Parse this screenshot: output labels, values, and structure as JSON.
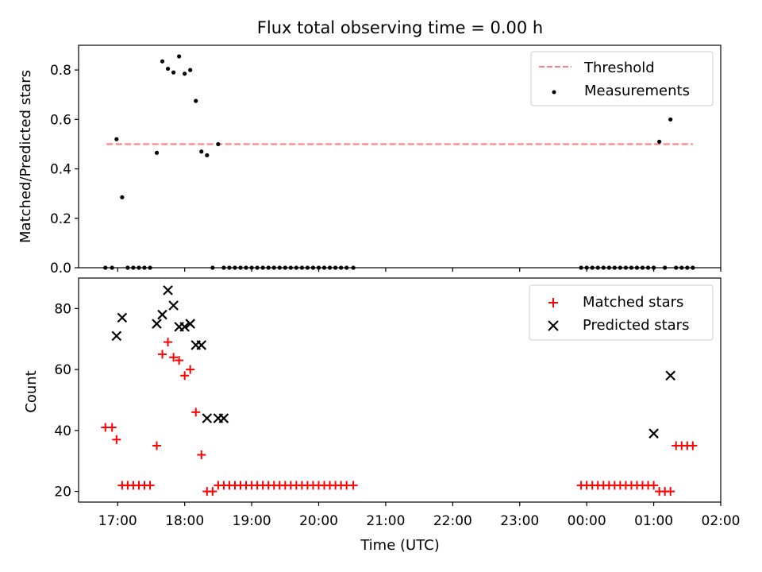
{
  "chart_data": [
    {
      "type": "scatter",
      "title": "Flux total observing time = 0.00 h",
      "xlabel": "",
      "ylabel": "Matched/Predicted stars",
      "xlim": [
        "16:25",
        "26:00"
      ],
      "ylim": [
        0,
        0.9
      ],
      "yticks": [
        0.0,
        0.2,
        0.4,
        0.6,
        0.8
      ],
      "ytick_labels": [
        "0.0",
        "0.2",
        "0.4",
        "0.6",
        "0.8"
      ],
      "legend_position": "top-right",
      "series": [
        {
          "name": "Threshold",
          "kind": "dashed-line",
          "color": "#ff7f7f",
          "x": [
            "16:50",
            "25:35"
          ],
          "y": [
            0.5,
            0.5
          ]
        },
        {
          "name": "Measurements",
          "kind": "points",
          "color": "#000000",
          "x": [
            "16:49",
            "16:55",
            "16:59",
            "17:04",
            "17:09",
            "17:14",
            "17:19",
            "17:24",
            "17:29",
            "17:35",
            "17:40",
            "17:45",
            "17:50",
            "17:55",
            "18:00",
            "18:05",
            "18:10",
            "18:15",
            "18:20",
            "18:25",
            "18:30",
            "18:35",
            "18:40",
            "18:45",
            "18:50",
            "18:55",
            "19:00",
            "19:05",
            "19:10",
            "19:15",
            "19:20",
            "19:25",
            "19:30",
            "19:35",
            "19:40",
            "19:45",
            "19:50",
            "19:55",
            "20:00",
            "20:05",
            "20:10",
            "20:15",
            "20:20",
            "20:25",
            "20:31",
            "23:55",
            "24:00",
            "24:05",
            "24:10",
            "24:15",
            "24:20",
            "24:25",
            "24:30",
            "24:35",
            "24:40",
            "24:45",
            "24:50",
            "24:55",
            "25:00",
            "25:05",
            "25:10",
            "25:15",
            "25:20",
            "25:25",
            "25:30",
            "25:35"
          ],
          "y": [
            0,
            0,
            0.52,
            0.285,
            0,
            0,
            0,
            0,
            0,
            0.465,
            0.835,
            0.805,
            0.79,
            0.855,
            0.785,
            0.8,
            0.675,
            0.47,
            0.455,
            0,
            0.5,
            0,
            0,
            0,
            0,
            0,
            0,
            0,
            0,
            0,
            0,
            0,
            0,
            0,
            0,
            0,
            0,
            0,
            0,
            0,
            0,
            0,
            0,
            0,
            0,
            0,
            0,
            0,
            0,
            0,
            0,
            0,
            0,
            0,
            0,
            0,
            0,
            0,
            0,
            0.51,
            0,
            0.6,
            0,
            0,
            0,
            0
          ]
        }
      ]
    },
    {
      "type": "scatter",
      "title": "",
      "xlabel": "Time (UTC)",
      "ylabel": "Count",
      "xlim": [
        "16:25",
        "26:00"
      ],
      "ylim": [
        16.5,
        90
      ],
      "yticks": [
        20,
        40,
        60,
        80
      ],
      "ytick_labels": [
        "20",
        "40",
        "60",
        "80"
      ],
      "xticks": [
        "17:00",
        "18:00",
        "19:00",
        "20:00",
        "21:00",
        "22:00",
        "23:00",
        "24:00",
        "25:00",
        "26:00"
      ],
      "xtick_labels": [
        "17:00",
        "18:00",
        "19:00",
        "20:00",
        "21:00",
        "22:00",
        "23:00",
        "00:00",
        "01:00",
        "02:00"
      ],
      "legend_position": "top-right",
      "series": [
        {
          "name": "Matched stars",
          "marker": "+",
          "color": "#ff0000",
          "x": [
            "16:49",
            "16:55",
            "16:59",
            "17:04",
            "17:09",
            "17:14",
            "17:19",
            "17:24",
            "17:29",
            "17:35",
            "17:40",
            "17:45",
            "17:50",
            "17:55",
            "18:00",
            "18:05",
            "18:10",
            "18:15",
            "18:20",
            "18:25",
            "18:30",
            "18:35",
            "18:40",
            "18:45",
            "18:50",
            "18:55",
            "19:00",
            "19:05",
            "19:10",
            "19:15",
            "19:20",
            "19:25",
            "19:30",
            "19:35",
            "19:40",
            "19:45",
            "19:50",
            "19:55",
            "20:00",
            "20:05",
            "20:10",
            "20:15",
            "20:20",
            "20:25",
            "20:31",
            "23:55",
            "24:00",
            "24:05",
            "24:10",
            "24:15",
            "24:20",
            "24:25",
            "24:30",
            "24:35",
            "24:40",
            "24:45",
            "24:50",
            "24:55",
            "25:00",
            "25:05",
            "25:10",
            "25:15",
            "25:20",
            "25:25",
            "25:30",
            "25:35"
          ],
          "y": [
            41,
            41,
            37,
            22,
            22,
            22,
            22,
            22,
            22,
            35,
            65,
            69,
            64,
            63,
            58,
            60,
            46,
            32,
            20,
            20,
            22,
            22,
            22,
            22,
            22,
            22,
            22,
            22,
            22,
            22,
            22,
            22,
            22,
            22,
            22,
            22,
            22,
            22,
            22,
            22,
            22,
            22,
            22,
            22,
            22,
            22,
            22,
            22,
            22,
            22,
            22,
            22,
            22,
            22,
            22,
            22,
            22,
            22,
            22,
            20,
            20,
            20,
            35,
            35,
            35,
            35
          ]
        },
        {
          "name": "Predicted stars",
          "marker": "x",
          "color": "#000000",
          "x": [
            "16:59",
            "17:04",
            "17:35",
            "17:40",
            "17:45",
            "17:50",
            "17:55",
            "18:00",
            "18:05",
            "18:10",
            "18:15",
            "18:20",
            "18:30",
            "18:35",
            "25:00",
            "25:15"
          ],
          "y": [
            71,
            77,
            75,
            78,
            86,
            81,
            74,
            74,
            75,
            68,
            68,
            44,
            44,
            44,
            39,
            58
          ]
        }
      ]
    }
  ]
}
